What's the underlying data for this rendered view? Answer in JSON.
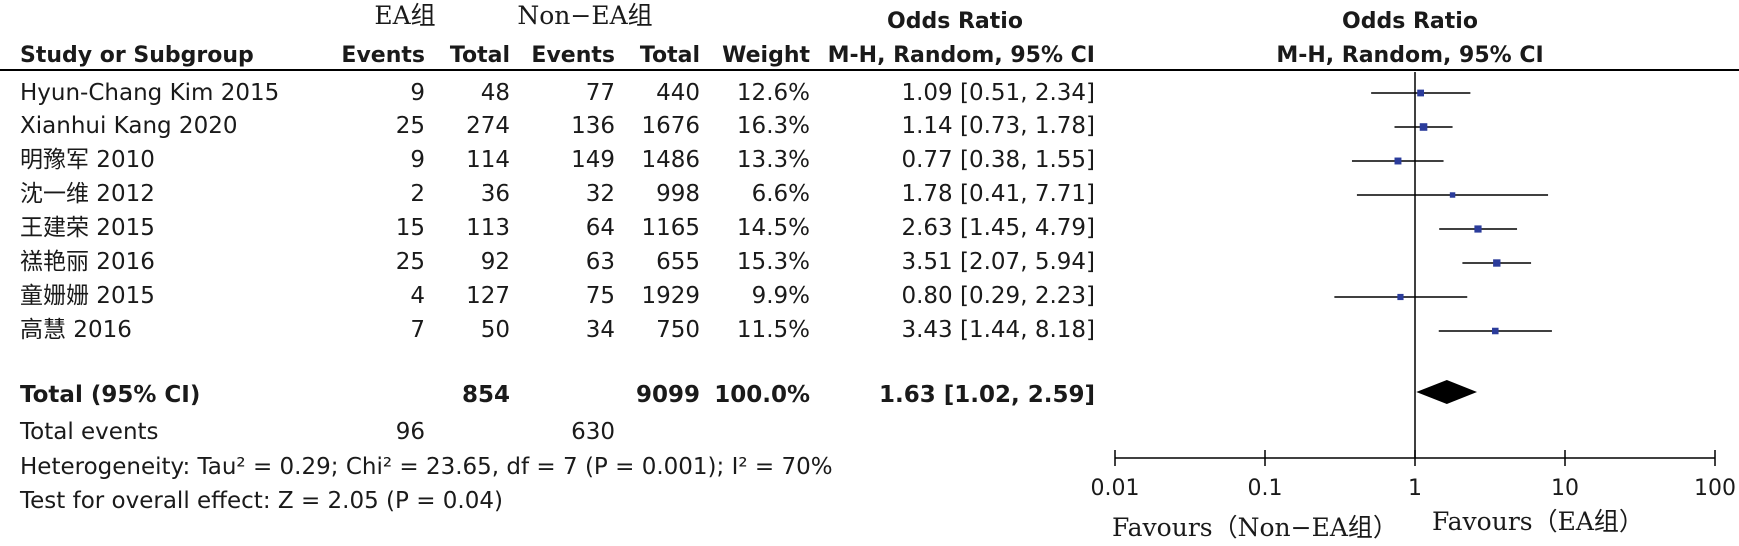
{
  "groups": {
    "ea": "EA组",
    "non_ea": "Non−EA组"
  },
  "headers": {
    "study": "Study or Subgroup",
    "events": "Events",
    "total": "Total",
    "weight": "Weight",
    "or_title": "Odds Ratio",
    "or_method": "M-H, Random, 95% CI"
  },
  "studies": [
    {
      "name": "Hyun-Chang Kim 2015",
      "ea_events": "9",
      "ea_total": "48",
      "non_events": "77",
      "non_total": "440",
      "weight": "12.6%",
      "ci_text": "1.09 [0.51, 2.34]"
    },
    {
      "name": "Xianhui Kang 2020",
      "ea_events": "25",
      "ea_total": "274",
      "non_events": "136",
      "non_total": "1676",
      "weight": "16.3%",
      "ci_text": "1.14 [0.73, 1.78]"
    },
    {
      "name": "明豫军 2010",
      "ea_events": "9",
      "ea_total": "114",
      "non_events": "149",
      "non_total": "1486",
      "weight": "13.3%",
      "ci_text": "0.77 [0.38, 1.55]"
    },
    {
      "name": "沈一维 2012",
      "ea_events": "2",
      "ea_total": "36",
      "non_events": "32",
      "non_total": "998",
      "weight": "6.6%",
      "ci_text": "1.78 [0.41, 7.71]"
    },
    {
      "name": "王建荣 2015",
      "ea_events": "15",
      "ea_total": "113",
      "non_events": "64",
      "non_total": "1165",
      "weight": "14.5%",
      "ci_text": "2.63 [1.45, 4.79]"
    },
    {
      "name": "禚艳丽 2016",
      "ea_events": "25",
      "ea_total": "92",
      "non_events": "63",
      "non_total": "655",
      "weight": "15.3%",
      "ci_text": "3.51 [2.07, 5.94]"
    },
    {
      "name": "童姗姗 2015",
      "ea_events": "4",
      "ea_total": "127",
      "non_events": "75",
      "non_total": "1929",
      "weight": "9.9%",
      "ci_text": "0.80 [0.29, 2.23]"
    },
    {
      "name": "高慧 2016",
      "ea_events": "7",
      "ea_total": "50",
      "non_events": "34",
      "non_total": "750",
      "weight": "11.5%",
      "ci_text": "3.43 [1.44, 8.18]"
    }
  ],
  "total_row": {
    "label": "Total (95% CI)",
    "ea_total": "854",
    "non_total": "9099",
    "weight": "100.0%",
    "ci_text": "1.63 [1.02, 2.59]"
  },
  "events_row": {
    "label": "Total events",
    "ea_events": "96",
    "non_events": "630"
  },
  "heterogeneity": "Heterogeneity: Tau² = 0.29; Chi² = 23.65, df = 7 (P = 0.001); I² = 70%",
  "overall_effect": "Test for overall effect: Z = 2.05 (P = 0.04)",
  "favours": {
    "left": "Favours（Non−EA组）",
    "right": "Favours（EA组）"
  },
  "colors": {
    "point": "#2b3c9b",
    "line": "#000000",
    "diamond": "#000000"
  },
  "chart_data": {
    "type": "forest",
    "scale": "log",
    "xlim": [
      0.01,
      100
    ],
    "ticks": [
      {
        "value": 0.01,
        "label": "0.01"
      },
      {
        "value": 0.1,
        "label": "0.1"
      },
      {
        "value": 1,
        "label": "1"
      },
      {
        "value": 10,
        "label": "10"
      },
      {
        "value": 100,
        "label": "100"
      }
    ],
    "studies": [
      {
        "or": 1.09,
        "lo": 0.51,
        "hi": 2.34,
        "weight": 12.6
      },
      {
        "or": 1.14,
        "lo": 0.73,
        "hi": 1.78,
        "weight": 16.3
      },
      {
        "or": 0.77,
        "lo": 0.38,
        "hi": 1.55,
        "weight": 13.3
      },
      {
        "or": 1.78,
        "lo": 0.41,
        "hi": 7.71,
        "weight": 6.6
      },
      {
        "or": 2.63,
        "lo": 1.45,
        "hi": 4.79,
        "weight": 14.5
      },
      {
        "or": 3.51,
        "lo": 2.07,
        "hi": 5.94,
        "weight": 15.3
      },
      {
        "or": 0.8,
        "lo": 0.29,
        "hi": 2.23,
        "weight": 9.9
      },
      {
        "or": 3.43,
        "lo": 1.44,
        "hi": 8.18,
        "weight": 11.5
      }
    ],
    "pooled": {
      "or": 1.63,
      "lo": 1.02,
      "hi": 2.59
    }
  }
}
